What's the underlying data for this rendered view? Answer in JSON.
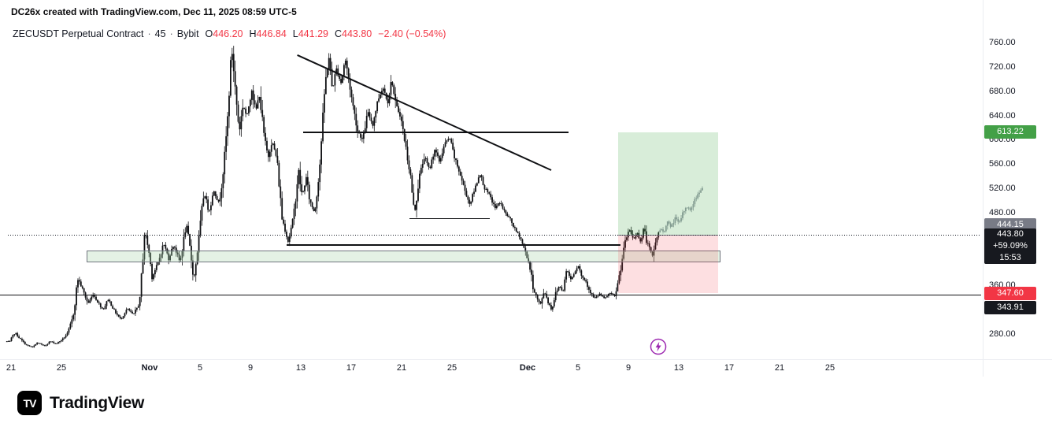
{
  "watermark": "DC26x created with TradingView.com, Dec 11, 2025 08:59 UTC-5",
  "header": {
    "title": "ZECUSDT Perpetual Contract",
    "separator": "·",
    "interval": "45",
    "exchange": "Bybit",
    "o_label": "O",
    "o_value": "446.20",
    "h_label": "H",
    "h_value": "446.84",
    "l_label": "L",
    "l_value": "441.29",
    "c_label": "C",
    "c_value": "443.80",
    "change": "−2.40 (−0.54%)"
  },
  "price_axis": {
    "ticks": [
      {
        "value": 760,
        "label": "760.00"
      },
      {
        "value": 720,
        "label": "720.00"
      },
      {
        "value": 680,
        "label": "680.00"
      },
      {
        "value": 640,
        "label": "640.00"
      },
      {
        "value": 600,
        "label": "600.00"
      },
      {
        "value": 560,
        "label": "560.00"
      },
      {
        "value": 520,
        "label": "520.00"
      },
      {
        "value": 480,
        "label": "480.00"
      },
      {
        "value": 360,
        "label": "360.00"
      },
      {
        "value": 280,
        "label": "280.00"
      }
    ],
    "badges": [
      {
        "id": "target",
        "label": "613.22",
        "price": 613.22,
        "bg": "#43a047",
        "dy": 0
      },
      {
        "id": "entry",
        "label": "444.15",
        "price": 444.15,
        "bg": "#787b86",
        "dy": -12
      },
      {
        "id": "last-price",
        "lines": [
          "443.80",
          "+59.09%",
          "15:53"
        ],
        "price": 443.8,
        "bg": "#17191f",
        "dy": 15
      },
      {
        "id": "stop",
        "label": "347.60",
        "price": 347.6,
        "bg": "#f23645",
        "dy": 0
      },
      {
        "id": "support",
        "label": "343.91",
        "price": 343.91,
        "bg": "#17191f",
        "dy": 16
      }
    ]
  },
  "time_axis": {
    "labels": [
      {
        "text": "21",
        "day": 0
      },
      {
        "text": "25",
        "day": 4
      },
      {
        "text": "Nov",
        "day": 11,
        "bold": true
      },
      {
        "text": "5",
        "day": 15
      },
      {
        "text": "9",
        "day": 19
      },
      {
        "text": "13",
        "day": 23
      },
      {
        "text": "17",
        "day": 27
      },
      {
        "text": "21",
        "day": 31
      },
      {
        "text": "25",
        "day": 35
      },
      {
        "text": "Dec",
        "day": 41,
        "bold": true
      },
      {
        "text": "5",
        "day": 45
      },
      {
        "text": "9",
        "day": 49
      },
      {
        "text": "13",
        "day": 53
      },
      {
        "text": "17",
        "day": 57
      },
      {
        "text": "21",
        "day": 61
      },
      {
        "text": "25",
        "day": 65
      }
    ]
  },
  "chart_data": {
    "type": "candlestick",
    "title": "ZECUSDT Perpetual Contract · 45 · Bybit",
    "symbol": "ZECUSDT",
    "exchange": "Bybit",
    "interval": "45 minutes",
    "ohlc_last": {
      "open": 446.2,
      "high": 446.84,
      "low": 441.29,
      "close": 443.8,
      "change": -2.4,
      "change_pct": -0.54
    },
    "ylim": [
      239.7,
      792.5
    ],
    "x_unit": "days_from_oct21",
    "x_range_days": [
      0,
      55
    ],
    "grid": "off",
    "candle_color": "#101114",
    "projection_color": "#9298a3",
    "projection_start_day": 51.45,
    "price_path": [
      [
        0,
        268
      ],
      [
        0.4,
        283
      ],
      [
        0.8,
        272
      ],
      [
        1.3,
        262
      ],
      [
        1.8,
        258
      ],
      [
        2.2,
        266
      ],
      [
        2.7,
        260
      ],
      [
        3.2,
        268
      ],
      [
        3.7,
        264
      ],
      [
        4.2,
        272
      ],
      [
        4.6,
        282
      ],
      [
        5.0,
        308
      ],
      [
        5.4,
        372
      ],
      [
        5.8,
        352
      ],
      [
        6.2,
        330
      ],
      [
        6.6,
        346
      ],
      [
        7.0,
        332
      ],
      [
        7.4,
        320
      ],
      [
        7.8,
        338
      ],
      [
        8.3,
        318
      ],
      [
        8.8,
        304
      ],
      [
        9.3,
        322
      ],
      [
        9.8,
        312
      ],
      [
        10.3,
        332
      ],
      [
        10.7,
        452
      ],
      [
        11.0,
        420
      ],
      [
        11.3,
        374
      ],
      [
        11.8,
        400
      ],
      [
        12.2,
        430
      ],
      [
        12.6,
        405
      ],
      [
        13.0,
        428
      ],
      [
        13.5,
        398
      ],
      [
        14.0,
        462
      ],
      [
        14.3,
        420
      ],
      [
        14.6,
        370
      ],
      [
        15.0,
        438
      ],
      [
        15.4,
        515
      ],
      [
        15.8,
        482
      ],
      [
        16.2,
        518
      ],
      [
        16.6,
        494
      ],
      [
        17.0,
        562
      ],
      [
        17.3,
        642
      ],
      [
        17.6,
        755
      ],
      [
        17.9,
        682
      ],
      [
        18.2,
        614
      ],
      [
        18.5,
        660
      ],
      [
        18.8,
        638
      ],
      [
        19.2,
        686
      ],
      [
        19.5,
        646
      ],
      [
        19.8,
        676
      ],
      [
        20.2,
        602
      ],
      [
        20.5,
        572
      ],
      [
        20.8,
        600
      ],
      [
        21.2,
        568
      ],
      [
        21.6,
        472
      ],
      [
        22.1,
        432
      ],
      [
        22.5,
        472
      ],
      [
        22.9,
        550
      ],
      [
        23.2,
        506
      ],
      [
        23.5,
        540
      ],
      [
        23.8,
        500
      ],
      [
        24.2,
        480
      ],
      [
        24.6,
        562
      ],
      [
        25.0,
        688
      ],
      [
        25.3,
        740
      ],
      [
        25.6,
        682
      ],
      [
        25.9,
        718
      ],
      [
        26.3,
        694
      ],
      [
        26.6,
        736
      ],
      [
        26.9,
        700
      ],
      [
        27.2,
        660
      ],
      [
        27.6,
        616
      ],
      [
        28.0,
        600
      ],
      [
        28.4,
        646
      ],
      [
        28.8,
        626
      ],
      [
        29.2,
        666
      ],
      [
        29.6,
        688
      ],
      [
        30.0,
        664
      ],
      [
        30.3,
        700
      ],
      [
        30.6,
        660
      ],
      [
        31.0,
        640
      ],
      [
        31.4,
        592
      ],
      [
        31.8,
        540
      ],
      [
        32.1,
        476
      ],
      [
        32.5,
        540
      ],
      [
        32.9,
        574
      ],
      [
        33.3,
        550
      ],
      [
        33.7,
        586
      ],
      [
        34.1,
        564
      ],
      [
        34.5,
        594
      ],
      [
        34.9,
        604
      ],
      [
        35.3,
        570
      ],
      [
        35.7,
        546
      ],
      [
        36.1,
        518
      ],
      [
        36.5,
        494
      ],
      [
        36.9,
        520
      ],
      [
        37.3,
        546
      ],
      [
        37.7,
        520
      ],
      [
        38.1,
        508
      ],
      [
        38.5,
        488
      ],
      [
        38.9,
        498
      ],
      [
        39.3,
        480
      ],
      [
        39.7,
        470
      ],
      [
        40.1,
        452
      ],
      [
        40.5,
        440
      ],
      [
        40.9,
        416
      ],
      [
        41.2,
        398
      ],
      [
        41.5,
        360
      ],
      [
        41.8,
        340
      ],
      [
        42.1,
        328
      ],
      [
        42.4,
        352
      ],
      [
        42.7,
        334
      ],
      [
        43.0,
        320
      ],
      [
        43.3,
        346
      ],
      [
        43.6,
        360
      ],
      [
        43.9,
        350
      ],
      [
        44.2,
        388
      ],
      [
        44.5,
        370
      ],
      [
        44.8,
        382
      ],
      [
        45.1,
        394
      ],
      [
        45.4,
        374
      ],
      [
        45.7,
        368
      ],
      [
        46.0,
        352
      ],
      [
        46.4,
        338
      ],
      [
        46.8,
        346
      ],
      [
        47.2,
        338
      ],
      [
        47.6,
        348
      ],
      [
        48.0,
        342
      ],
      [
        48.3,
        368
      ],
      [
        48.6,
        405
      ],
      [
        48.9,
        438
      ],
      [
        49.2,
        452
      ],
      [
        49.5,
        436
      ],
      [
        49.8,
        448
      ],
      [
        50.1,
        430
      ],
      [
        50.3,
        458
      ],
      [
        50.5,
        436
      ],
      [
        50.7,
        424
      ],
      [
        51.0,
        408
      ],
      [
        51.2,
        428
      ],
      [
        51.4,
        444
      ],
      [
        51.7,
        454
      ],
      [
        51.9,
        448
      ],
      [
        52.2,
        464
      ],
      [
        52.5,
        457
      ],
      [
        52.8,
        472
      ],
      [
        53.1,
        462
      ],
      [
        53.4,
        479
      ],
      [
        53.7,
        491
      ],
      [
        54.0,
        484
      ],
      [
        54.3,
        499
      ],
      [
        54.6,
        511
      ],
      [
        54.9,
        521
      ]
    ],
    "overlays": {
      "descending_trendline": {
        "from_day": 22.75,
        "from_price": 742,
        "to_day": 42.9,
        "to_price": 552,
        "color": "#101114"
      },
      "resistance_line": {
        "price": 613.22,
        "from_day": 23.2,
        "to_day": 44.25,
        "color": "#101114"
      },
      "minor_line": {
        "price": 470,
        "from_day": 31.6,
        "to_day": 38.0,
        "color": "#101114"
      },
      "structure_line": {
        "price": 427,
        "from_day": 21.9,
        "to_day": 48.4,
        "color": "#101114"
      },
      "support_line": {
        "price": 343.91,
        "full_width": true,
        "color": "#101114"
      },
      "last_price_line": {
        "price": 443.8,
        "style": "dotted",
        "color": "#131722"
      },
      "demand_zone": {
        "price_top": 418,
        "price_bottom": 398,
        "from_day": 6,
        "to_day": 56.3,
        "fill": "rgba(170,214,175,0.32)",
        "border": "#70757e"
      },
      "long_position": {
        "entry": 444.15,
        "target": 613.22,
        "stop": 347.6,
        "from_day": 48.2,
        "to_day": 56.1,
        "profit_pct": "+59.09%",
        "profit_fill": "rgba(76,175,80,0.22)",
        "loss_fill": "rgba(242,54,69,0.16)",
        "entry_line_color": "#787b86"
      },
      "flash_marker": {
        "day": 51.4,
        "price": 259,
        "color": "#9c27b0"
      }
    }
  },
  "footer": {
    "brand": "TradingView",
    "monogram": "TV"
  }
}
